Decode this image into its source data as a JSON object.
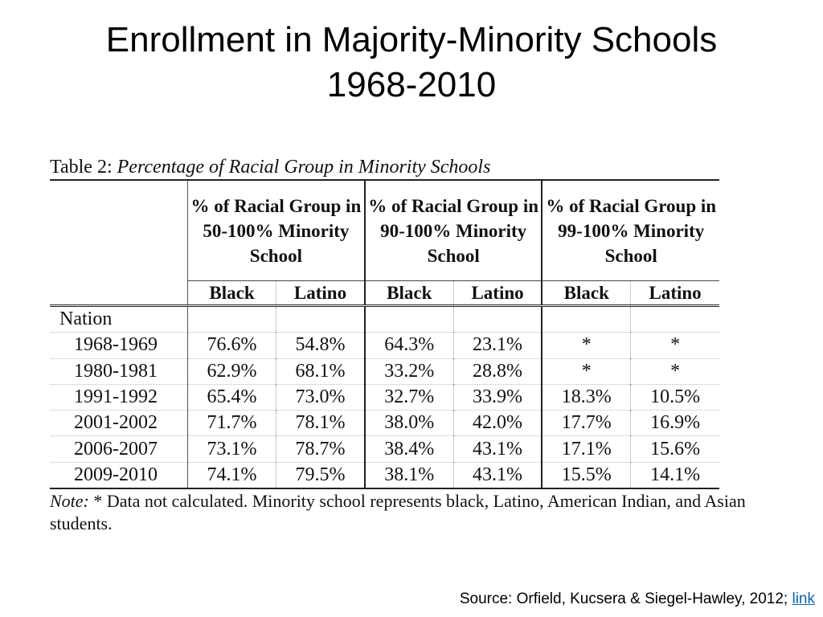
{
  "slide": {
    "title_line1": "Enrollment in Majority-Minority Schools",
    "title_line2": "1968-2010"
  },
  "table": {
    "caption_prefix": "Table 2: ",
    "caption_title": "Percentage of Racial Group in Minority Schools",
    "group_headers": [
      "% of Racial Group in 50-100% Minority School",
      "% of Racial Group in 90-100% Minority School",
      "% of Racial Group in 99-100% Minority School"
    ],
    "sub_headers": [
      "Black",
      "Latino",
      "Black",
      "Latino",
      "Black",
      "Latino"
    ],
    "section_label": "Nation",
    "rows": [
      {
        "year": "1968-1969",
        "values": [
          "76.6%",
          "54.8%",
          "64.3%",
          "23.1%",
          "*",
          "*"
        ]
      },
      {
        "year": "1980-1981",
        "values": [
          "62.9%",
          "68.1%",
          "33.2%",
          "28.8%",
          "*",
          "*"
        ]
      },
      {
        "year": "1991-1992",
        "values": [
          "65.4%",
          "73.0%",
          "32.7%",
          "33.9%",
          "18.3%",
          "10.5%"
        ]
      },
      {
        "year": "2001-2002",
        "values": [
          "71.7%",
          "78.1%",
          "38.0%",
          "42.0%",
          "17.7%",
          "16.9%"
        ]
      },
      {
        "year": "2006-2007",
        "values": [
          "73.1%",
          "78.7%",
          "38.4%",
          "43.1%",
          "17.1%",
          "15.6%"
        ]
      },
      {
        "year": "2009-2010",
        "values": [
          "74.1%",
          "79.5%",
          "38.1%",
          "43.1%",
          "15.5%",
          "14.1%"
        ]
      }
    ],
    "note_label": "Note:",
    "note_text": " * Data not calculated. Minority school represents black, Latino, American Indian, and Asian students."
  },
  "source": {
    "text": "Source: Orfield, Kucsera & Siegel-Hawley, 2012; ",
    "link_label": "link",
    "link_color": "#0563c1"
  }
}
